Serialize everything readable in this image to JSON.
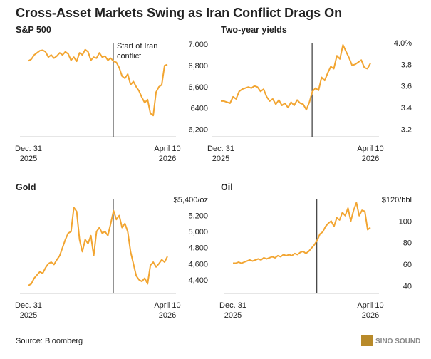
{
  "title": "Cross-Asset Markets Swing as Iran Conflict Drags On",
  "source": "Source: Bloomberg",
  "watermark": "SINO SOUND",
  "chart_data": [
    {
      "type": "line",
      "title": "S&P 500",
      "annotation": "Start of Iran\nconflict",
      "color": "#f2a531",
      "categories": [
        "Dec. 31\n2025",
        null,
        null,
        null,
        null,
        null,
        null,
        null,
        null,
        null,
        null,
        null,
        null,
        null,
        null,
        null,
        null,
        null,
        null,
        null,
        null,
        null,
        null,
        null,
        null,
        null,
        null,
        null,
        null,
        null,
        null,
        null,
        null,
        null,
        null,
        null,
        null,
        null,
        null,
        null,
        null,
        null,
        null,
        null,
        null,
        null,
        null,
        null,
        null,
        "April 10\n2026"
      ],
      "values": [
        6845,
        6860,
        6900,
        6920,
        6940,
        6945,
        6930,
        6880,
        6900,
        6870,
        6890,
        6920,
        6900,
        6930,
        6910,
        6850,
        6880,
        6840,
        6920,
        6900,
        6950,
        6930,
        6850,
        6880,
        6870,
        6920,
        6880,
        6890,
        6850,
        6870,
        6840,
        6830,
        6780,
        6700,
        6680,
        6720,
        6620,
        6650,
        6600,
        6560,
        6500,
        6450,
        6480,
        6350,
        6330,
        6550,
        6600,
        6620,
        6800,
        6810
      ],
      "ylim": [
        6130,
        7015
      ],
      "yticks": [
        {
          "value": 6200,
          "label": "6,200"
        },
        6400,
        {
          "value": 6600,
          "label": "6,600"
        },
        {
          "value": 6800,
          "label": "6,800"
        },
        {
          "value": 7000,
          "label": "7,000"
        }
      ],
      "grid": false
    },
    {
      "type": "line",
      "title": "Two-year yields",
      "color": "#f2a531",
      "categories": [
        "Dec. 31\n2025",
        null,
        null,
        null,
        null,
        null,
        null,
        null,
        null,
        null,
        null,
        null,
        null,
        null,
        null,
        null,
        null,
        null,
        null,
        null,
        null,
        null,
        null,
        null,
        null,
        null,
        null,
        null,
        null,
        null,
        null,
        null,
        null,
        null,
        null,
        null,
        null,
        null,
        null,
        null,
        null,
        null,
        null,
        null,
        null,
        null,
        null,
        null,
        null,
        "April 10\n2026"
      ],
      "values": [
        3.46,
        3.46,
        3.45,
        3.44,
        3.5,
        3.48,
        3.55,
        3.57,
        3.58,
        3.59,
        3.58,
        3.6,
        3.59,
        3.55,
        3.57,
        3.5,
        3.46,
        3.48,
        3.43,
        3.47,
        3.42,
        3.44,
        3.4,
        3.45,
        3.42,
        3.47,
        3.44,
        3.43,
        3.38,
        3.45,
        3.55,
        3.58,
        3.56,
        3.68,
        3.65,
        3.72,
        3.78,
        3.76,
        3.88,
        3.85,
        3.98,
        3.92,
        3.86,
        3.79,
        3.8,
        3.82,
        3.84,
        3.77,
        3.76,
        3.81
      ],
      "ylim": [
        3.13,
        4.0
      ],
      "yticks": [
        3.2,
        3.4,
        3.6,
        3.8,
        {
          "value": 4.0,
          "label": "4.0%"
        }
      ],
      "grid": false
    },
    {
      "type": "line",
      "title": "Gold",
      "color": "#f2a531",
      "categories": [
        "Dec. 31\n2025",
        null,
        null,
        null,
        null,
        null,
        null,
        null,
        null,
        null,
        null,
        null,
        null,
        null,
        null,
        null,
        null,
        null,
        null,
        null,
        null,
        null,
        null,
        null,
        null,
        null,
        null,
        null,
        null,
        null,
        null,
        null,
        null,
        null,
        null,
        null,
        null,
        null,
        null,
        null,
        null,
        null,
        null,
        null,
        null,
        null,
        null,
        null,
        null,
        "April 10\n2026"
      ],
      "values": [
        4330,
        4350,
        4420,
        4460,
        4500,
        4480,
        4550,
        4600,
        4620,
        4590,
        4650,
        4700,
        4800,
        4900,
        4980,
        5000,
        5300,
        5250,
        4900,
        4750,
        4900,
        4850,
        4950,
        4700,
        5000,
        5050,
        4980,
        5000,
        4950,
        5100,
        5260,
        5150,
        5200,
        5050,
        5100,
        5000,
        4750,
        4600,
        4450,
        4400,
        4380,
        4420,
        4350,
        4580,
        4620,
        4560,
        4600,
        4650,
        4620,
        4690
      ],
      "ylim": [
        4230,
        5400
      ],
      "yticks": [
        {
          "value": 4400,
          "label": "4,400"
        },
        {
          "value": 4600,
          "label": "4,600"
        },
        {
          "value": 4800,
          "label": "4,800"
        },
        {
          "value": 5000,
          "label": "5,000"
        },
        {
          "value": 5200,
          "label": "5,200"
        },
        {
          "value": 5400,
          "label": "$5,400/oz"
        }
      ],
      "grid": false
    },
    {
      "type": "line",
      "title": "Oil",
      "color": "#f2a531",
      "categories": [
        "Dec. 31\n2025",
        null,
        null,
        null,
        null,
        null,
        null,
        null,
        null,
        null,
        null,
        null,
        null,
        null,
        null,
        null,
        null,
        null,
        null,
        null,
        null,
        null,
        null,
        null,
        null,
        null,
        null,
        null,
        null,
        null,
        null,
        null,
        null,
        null,
        null,
        null,
        null,
        null,
        null,
        null,
        null,
        null,
        null,
        null,
        null,
        null,
        null,
        null,
        null,
        "April 10\n2026"
      ],
      "values": [
        61,
        61,
        62,
        61,
        62,
        63,
        64,
        63,
        64,
        65,
        64,
        66,
        65,
        66,
        67,
        66,
        68,
        67,
        69,
        68,
        69,
        68,
        70,
        69,
        71,
        72,
        70,
        72,
        75,
        78,
        82,
        88,
        90,
        95,
        98,
        100,
        95,
        103,
        101,
        108,
        105,
        112,
        100,
        110,
        117,
        105,
        110,
        109,
        92,
        94
      ],
      "ylim": [
        33,
        120
      ],
      "yticks": [
        40,
        60,
        80,
        100,
        {
          "value": 120,
          "label": "$120/bbl"
        }
      ],
      "grid": false
    }
  ]
}
